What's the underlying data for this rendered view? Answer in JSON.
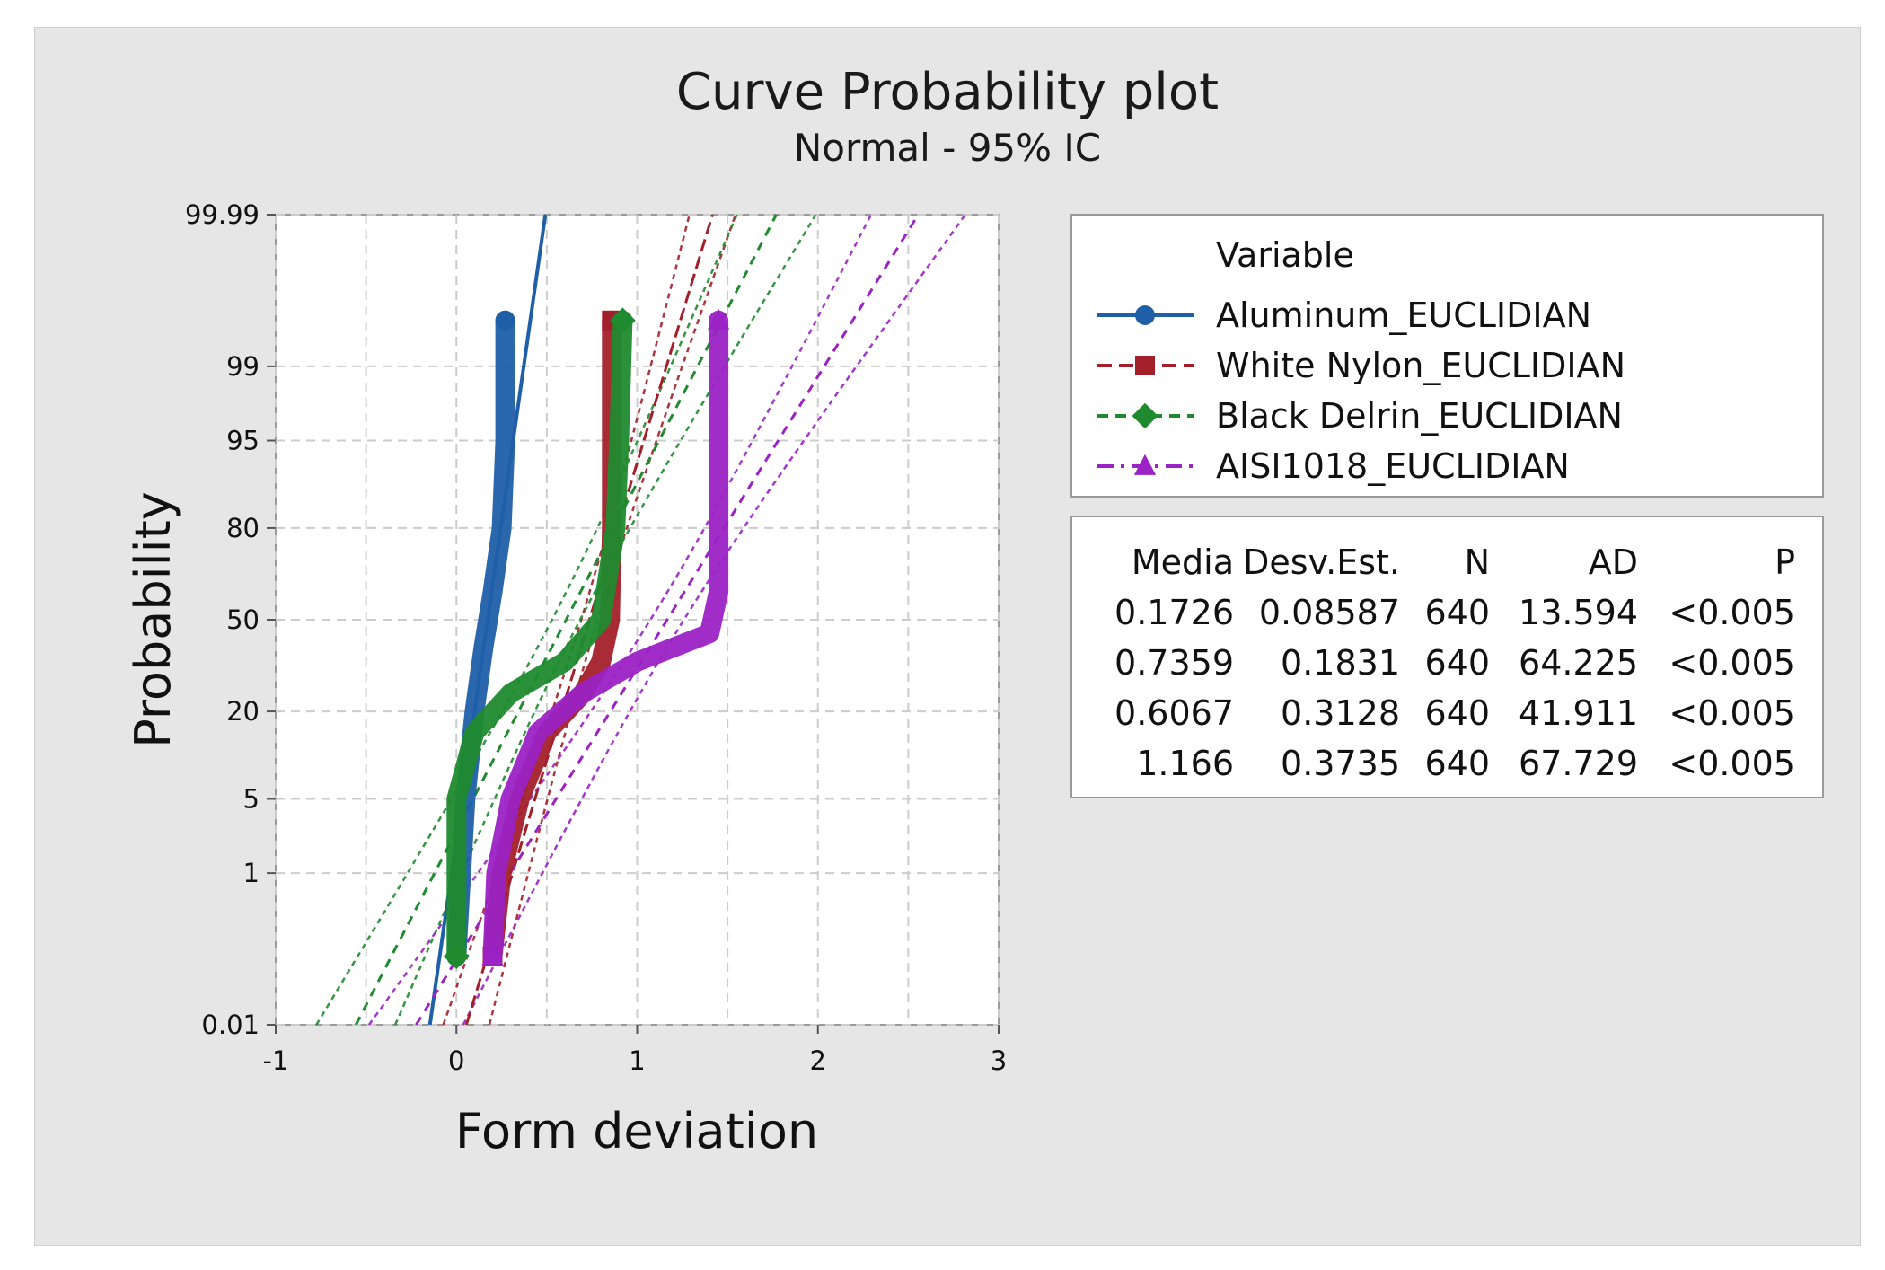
{
  "chart_data": {
    "type": "scatter",
    "title": "Curve Probability plot",
    "subtitle": "Normal - 95%  IC",
    "xlabel": "Form deviation",
    "ylabel": "Probability",
    "xlim": [
      -1,
      3
    ],
    "x_ticks": [
      "-1",
      "0",
      "1",
      "2",
      "3"
    ],
    "y_ticks": [
      "0.01",
      "1",
      "5",
      "20",
      "50",
      "80",
      "95",
      "99",
      "99.99"
    ],
    "y_tick_values": [
      0.01,
      1,
      5,
      20,
      50,
      80,
      95,
      99,
      99.99
    ],
    "grid": true,
    "legend_title": "Variable",
    "series": [
      {
        "name": "Aluminum_EUCLIDIAN",
        "color": "#1f5fa8",
        "marker": "circle",
        "mean": 0.1726,
        "sd": 0.08587
      },
      {
        "name": "White Nylon_EUCLIDIAN",
        "color": "#a3202a",
        "marker": "square",
        "mean": 0.7359,
        "sd": 0.1831
      },
      {
        "name": "Black Delrin_EUCLIDIAN",
        "color": "#1f8a2e",
        "marker": "diamond",
        "mean": 0.6067,
        "sd": 0.3128
      },
      {
        "name": "AISI1018_EUCLIDIAN",
        "color": "#9b22c4",
        "marker": "triangle",
        "mean": 1.166,
        "sd": 0.3735
      }
    ],
    "stats_table": {
      "headers": [
        "Media",
        "Desv.Est.",
        "N",
        "AD",
        "P"
      ],
      "rows": [
        [
          "0.1726",
          "0.08587",
          "640",
          "13.594",
          "<0.005"
        ],
        [
          "0.7359",
          "0.1831",
          "640",
          "64.225",
          "<0.005"
        ],
        [
          "0.6067",
          "0.3128",
          "640",
          "41.911",
          "<0.005"
        ],
        [
          "1.166",
          "0.3735",
          "640",
          "67.729",
          "<0.005"
        ]
      ]
    },
    "point_traces": [
      [
        [
          0.0,
          0.1
        ],
        [
          0.05,
          5
        ],
        [
          0.1,
          20
        ],
        [
          0.15,
          40
        ],
        [
          0.2,
          60
        ],
        [
          0.25,
          80
        ],
        [
          0.27,
          95
        ],
        [
          0.27,
          99.7
        ]
      ],
      [
        [
          0.2,
          0.1
        ],
        [
          0.25,
          1
        ],
        [
          0.35,
          5
        ],
        [
          0.5,
          15
        ],
        [
          0.7,
          25
        ],
        [
          0.8,
          35
        ],
        [
          0.85,
          50
        ],
        [
          0.86,
          80
        ],
        [
          0.86,
          95
        ],
        [
          0.86,
          99.7
        ]
      ],
      [
        [
          0.0,
          0.1
        ],
        [
          0.0,
          1
        ],
        [
          0.0,
          5
        ],
        [
          0.1,
          15
        ],
        [
          0.3,
          25
        ],
        [
          0.6,
          35
        ],
        [
          0.8,
          50
        ],
        [
          0.88,
          80
        ],
        [
          0.9,
          95
        ],
        [
          0.92,
          99.7
        ]
      ],
      [
        [
          0.2,
          0.1
        ],
        [
          0.22,
          1
        ],
        [
          0.3,
          5
        ],
        [
          0.45,
          15
        ],
        [
          0.7,
          25
        ],
        [
          1.0,
          35
        ],
        [
          1.4,
          45
        ],
        [
          1.45,
          60
        ],
        [
          1.45,
          80
        ],
        [
          1.45,
          95
        ],
        [
          1.45,
          99.7
        ]
      ]
    ]
  }
}
